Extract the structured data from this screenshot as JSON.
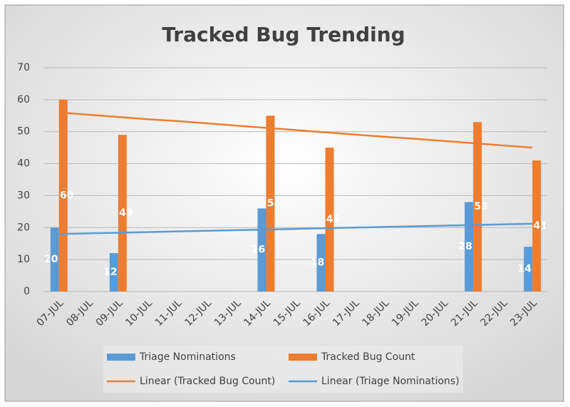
{
  "chart_data": {
    "type": "bar",
    "title": "Tracked Bug Trending",
    "categories": [
      "07-JUL",
      "08-JUL",
      "09-JUL",
      "10-JUL",
      "11-JUL",
      "12-JUL",
      "13-JUL",
      "14-JUL",
      "15-JUL",
      "16-JUL",
      "17-JUL",
      "18-JUL",
      "19-JUL",
      "20-JUL",
      "21-JUL",
      "22-JUL",
      "23-JUL"
    ],
    "series": [
      {
        "name": "Triage Nominations",
        "type": "bar",
        "color": "#5b9bd5",
        "values": [
          20,
          null,
          12,
          null,
          null,
          null,
          null,
          26,
          null,
          18,
          null,
          null,
          null,
          null,
          28,
          null,
          14
        ]
      },
      {
        "name": "Tracked Bug Count",
        "type": "bar",
        "color": "#ed7d31",
        "values": [
          60,
          null,
          49,
          null,
          null,
          null,
          null,
          55,
          null,
          45,
          null,
          null,
          null,
          null,
          53,
          null,
          41
        ]
      },
      {
        "name": "Linear (Tracked Bug Count)",
        "type": "line",
        "color": "#ed7d31",
        "values": [
          56,
          55.3,
          54.6,
          53.9,
          53.3,
          52.6,
          51.9,
          51.2,
          50.5,
          49.8,
          49.1,
          48.4,
          47.8,
          47.1,
          46.4,
          45.7,
          45
        ]
      },
      {
        "name": "Linear (Triage Nominations)",
        "type": "line",
        "color": "#5b9bd5",
        "values": [
          18,
          18.2,
          18.4,
          18.6,
          18.8,
          19,
          19.2,
          19.4,
          19.6,
          19.8,
          20,
          20.2,
          20.4,
          20.6,
          20.8,
          21,
          21.2
        ]
      }
    ],
    "ylim": [
      0,
      70
    ],
    "yticks": [
      0,
      10,
      20,
      30,
      40,
      50,
      60,
      70
    ],
    "grid": true
  }
}
